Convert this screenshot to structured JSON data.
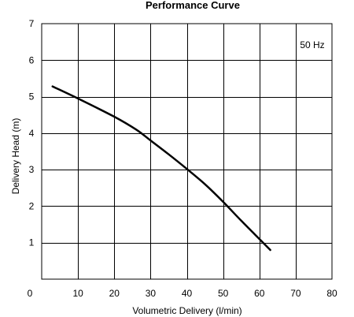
{
  "chart_data": {
    "type": "line",
    "title": "Performance Curve",
    "xlabel": "Volumetric Delivery (l/min)",
    "ylabel": "Delivery Head (m)",
    "xlim": [
      0,
      80
    ],
    "ylim": [
      0,
      7
    ],
    "xticks": [
      0,
      10,
      20,
      30,
      40,
      50,
      60,
      70,
      80
    ],
    "yticks": [
      1,
      2,
      3,
      4,
      5,
      6,
      7
    ],
    "x_origin_label": "0",
    "grid": true,
    "annotation": "50 Hz",
    "annotation_position": "top-right",
    "series": [
      {
        "x": [
          3,
          10,
          20,
          26,
          30,
          35,
          40,
          45,
          50,
          55,
          60,
          63
        ],
        "y": [
          5.28,
          4.95,
          4.45,
          4.1,
          3.8,
          3.42,
          3.02,
          2.6,
          2.12,
          1.6,
          1.1,
          0.8
        ]
      }
    ]
  }
}
